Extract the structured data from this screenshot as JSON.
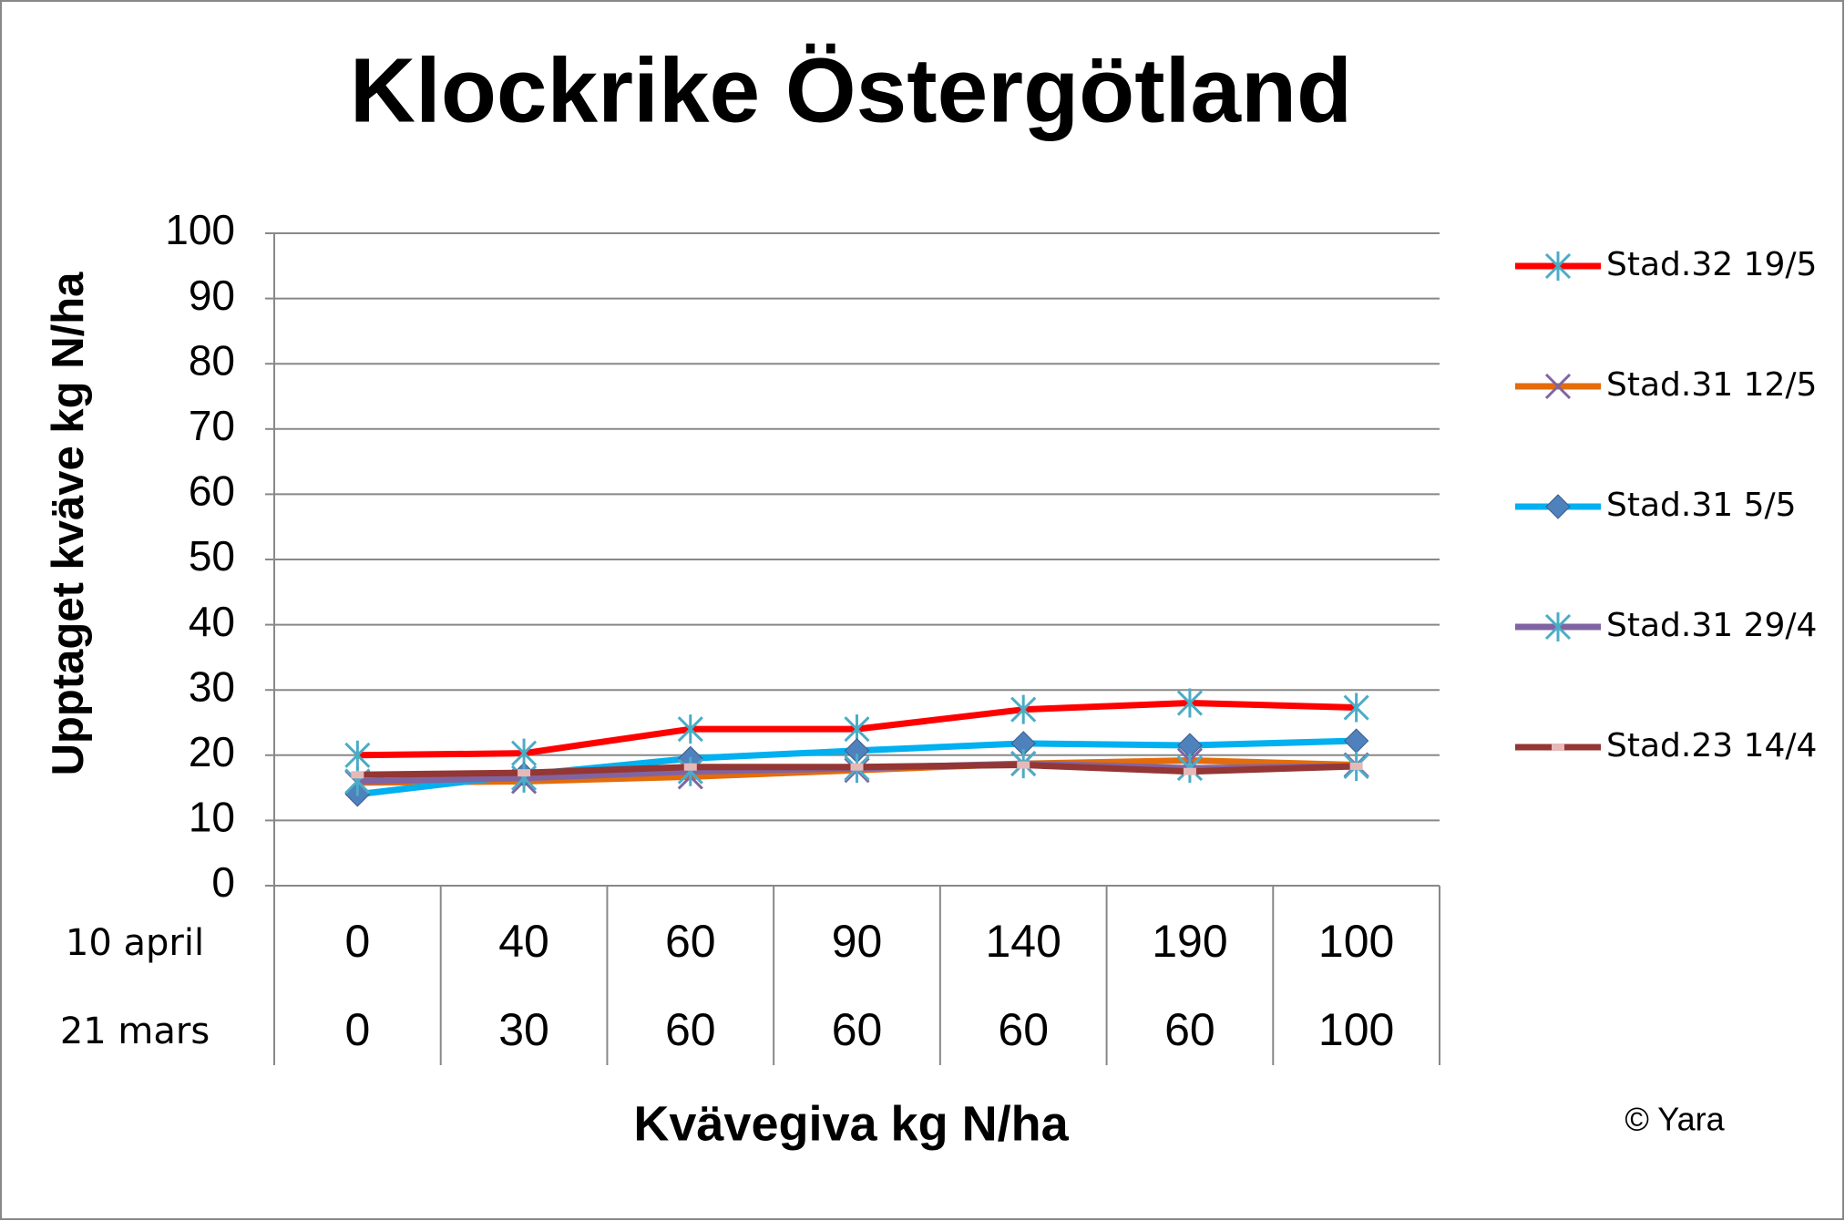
{
  "chart_data": {
    "type": "line",
    "title": "Klockrike Östergötland",
    "y_label": "Upptaget kväve kg N/ha",
    "x_label": "Kvävegiva kg N/ha",
    "category_levels": [
      {
        "name": "10 april",
        "labels": [
          "0",
          "40",
          "60",
          "90",
          "140",
          "190",
          "100"
        ]
      },
      {
        "name": "21 mars",
        "labels": [
          "0",
          "30",
          "60",
          "60",
          "60",
          "60",
          "100"
        ]
      }
    ],
    "series": [
      {
        "name": "Stad.32 19/5",
        "color": "#ff0000",
        "marker": "star",
        "marker_color": "#4bacc6",
        "values": [
          20,
          20.3,
          24,
          24,
          27,
          28,
          27.3
        ]
      },
      {
        "name": "Stad.31 12/5",
        "color": "#e46c0a",
        "marker": "x",
        "marker_color": "#8064a2",
        "values": [
          15.8,
          16,
          16.7,
          17.7,
          18.7,
          19.2,
          18.5
        ]
      },
      {
        "name": "Stad.31 5/5",
        "color": "#00b0f0",
        "marker": "diamond",
        "marker_color": "#4f81bd",
        "values": [
          14,
          17,
          19.5,
          20.7,
          21.8,
          21.5,
          22.2
        ]
      },
      {
        "name": "Stad.31 29/4",
        "color": "#8064a2",
        "marker": "star",
        "marker_color": "#4bacc6",
        "values": [
          16,
          16.5,
          17.5,
          18,
          18.7,
          18,
          18.3
        ]
      },
      {
        "name": "Stad.23 14/4",
        "color": "#943634",
        "marker": "dash",
        "marker_color": "#e6b9b8",
        "values": [
          17,
          17.3,
          18.2,
          18.2,
          18.5,
          17.5,
          18.3
        ]
      }
    ],
    "ylim": [
      0,
      100
    ],
    "yticks": [
      0,
      10,
      20,
      30,
      40,
      50,
      60,
      70,
      80,
      90,
      100
    ],
    "grid": true,
    "legend": "right",
    "footnote": "© Yara"
  }
}
